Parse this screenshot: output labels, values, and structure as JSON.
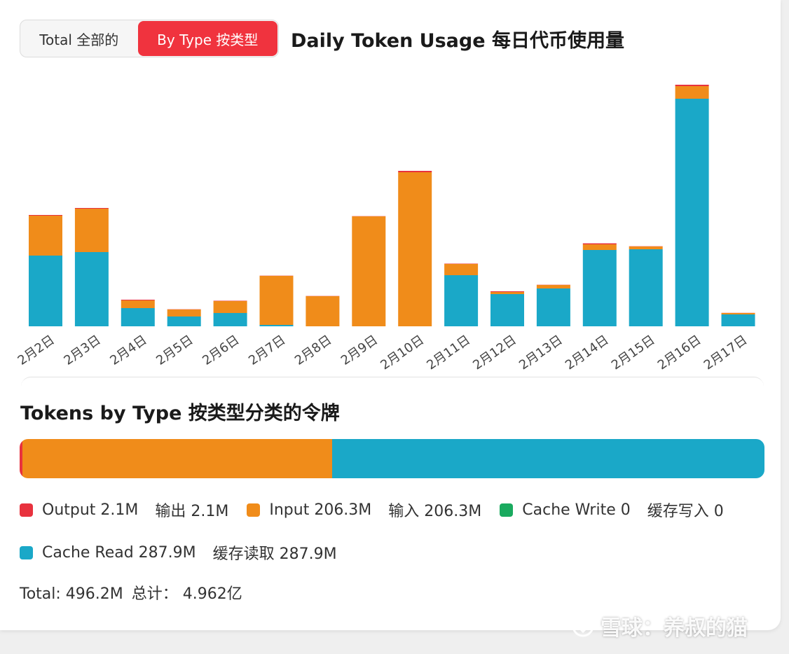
{
  "toggle": {
    "total_label": "Total  全部的",
    "by_type_label": "By Type  按类型"
  },
  "title": "Daily Token Usage  每日代币使用量",
  "section_title": "Tokens by Type  按类型分类的令牌",
  "colors": {
    "output": "#e8323e",
    "input": "#f08c1a",
    "cache_write": "#1aaa5f",
    "cache_read": "#1aa8c8"
  },
  "chart_data": {
    "type": "bar",
    "stacked": true,
    "categories": [
      "2月2日",
      "2月3日",
      "2月4日",
      "2月5日",
      "2月6日",
      "2月7日",
      "2月8日",
      "2月9日",
      "2月10日",
      "2月11日",
      "2月12日",
      "2月13日",
      "2月14日",
      "2月15日",
      "2月16日",
      "2月17日"
    ],
    "series": [
      {
        "name": "Cache Read",
        "color": "#1aa8c8",
        "values": [
          101,
          106,
          26,
          14,
          19,
          2,
          0,
          0,
          0,
          73,
          46,
          54,
          109,
          110,
          325,
          17
        ]
      },
      {
        "name": "Cache Write",
        "color": "#1aaa5f",
        "values": [
          0,
          0,
          0,
          0,
          0,
          0,
          0,
          0,
          0,
          0,
          0,
          0,
          0,
          0,
          0,
          0
        ]
      },
      {
        "name": "Input",
        "color": "#f08c1a",
        "values": [
          57,
          62,
          11,
          10,
          17,
          70,
          43,
          157,
          220,
          16,
          3,
          5,
          8,
          4,
          18,
          2
        ]
      },
      {
        "name": "Output",
        "color": "#e8323e",
        "values": [
          1,
          1,
          1,
          0.3,
          0.5,
          0.3,
          0.3,
          0.3,
          2,
          0.5,
          1,
          0.3,
          1.5,
          0.3,
          2,
          0.2
        ]
      }
    ],
    "grid": false
  },
  "type_breakdown": {
    "segments": [
      {
        "key": "output",
        "value": 2.1
      },
      {
        "key": "input",
        "value": 206.3
      },
      {
        "key": "cache_write",
        "value": 0
      },
      {
        "key": "cache_read",
        "value": 287.9
      }
    ]
  },
  "legend": {
    "output": {
      "en": "Output 2.1M",
      "zh": "输出 2.1M"
    },
    "input": {
      "en": "Input 206.3M",
      "zh": "输入 206.3M"
    },
    "cache_write": {
      "en": "Cache Write 0",
      "zh": "缓存写入 0"
    },
    "cache_read": {
      "en": "Cache Read 287.9M",
      "zh": "缓存读取 287.9M"
    }
  },
  "total": {
    "en": "Total: 496.2M",
    "zh": "总计：  4.962亿"
  },
  "watermark": "雪球：养叔的猫"
}
